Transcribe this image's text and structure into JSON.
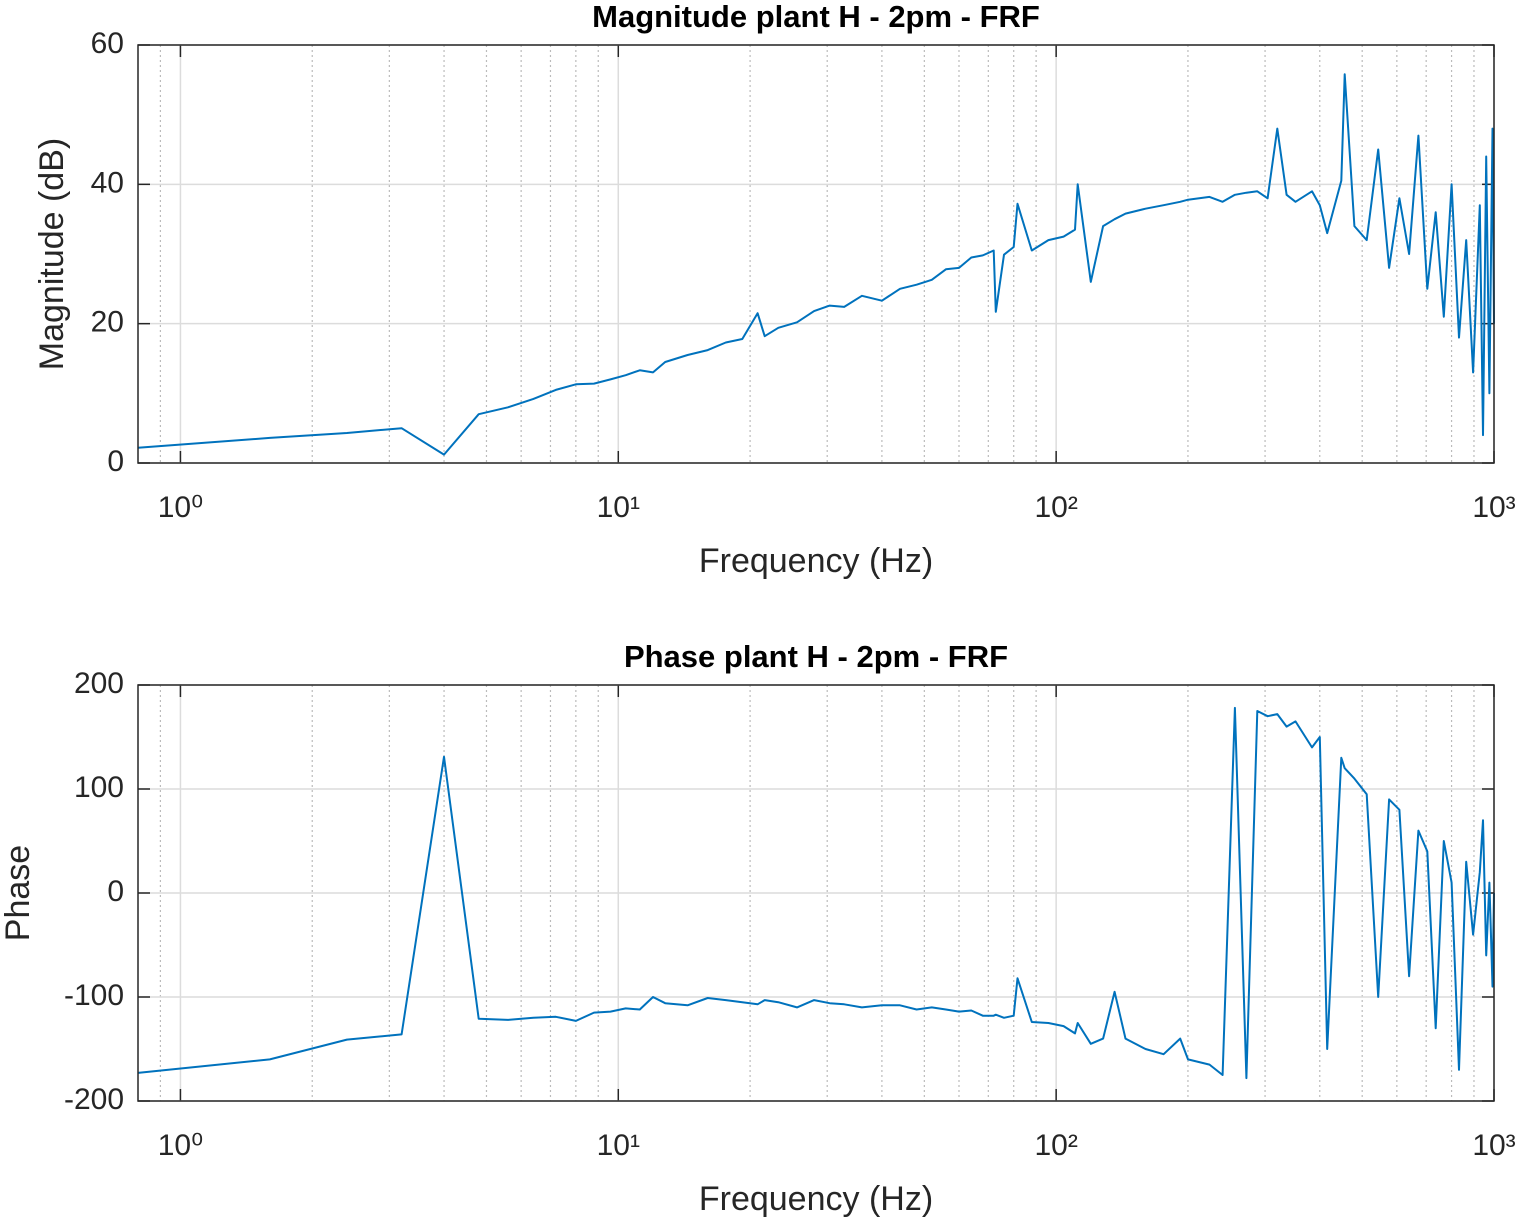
{
  "chart_data": [
    {
      "type": "line",
      "title": "Magnitude plant H - 2pm - FRF",
      "x_label": "Frequency (Hz)",
      "y_label": "Magnitude (dB)",
      "x_scale": "log",
      "grid": true,
      "minor_grid": true,
      "xlim": [
        0.8,
        1000
      ],
      "xticks": [
        {
          "value": 1,
          "label": "10⁰"
        },
        {
          "value": 10,
          "label": "10¹"
        },
        {
          "value": 100,
          "label": "10²"
        },
        {
          "value": 1000,
          "label": "10³"
        }
      ],
      "ylim": [
        0,
        60
      ],
      "yticks": [
        0,
        20,
        40,
        60
      ],
      "color": "#0072bd",
      "x": [
        0.8,
        1.6,
        2.4,
        3.2,
        4.0,
        4.8,
        5.6,
        6.4,
        7.2,
        8.0,
        8.8,
        9.6,
        10.4,
        11.2,
        12.0,
        12.8,
        14.4,
        16,
        17.6,
        19.2,
        20.8,
        21.6,
        23.2,
        25.6,
        28,
        30.4,
        32.8,
        36,
        40,
        44,
        48,
        52,
        56,
        60,
        64,
        68,
        72,
        72.8,
        76,
        80,
        81.6,
        88,
        96,
        104,
        110.4,
        112,
        120,
        128,
        136,
        144,
        160,
        176,
        192,
        200,
        224,
        240,
        256,
        272,
        288,
        304,
        320,
        336,
        352,
        384,
        400,
        416,
        448,
        456,
        480,
        512,
        544,
        576,
        608,
        640,
        672,
        704,
        736,
        768,
        800,
        832,
        864,
        896,
        928,
        944,
        960,
        976,
        992,
        1000
      ],
      "values": [
        2.2,
        3.6,
        4.3,
        5.0,
        1.2,
        7.0,
        8.0,
        9.2,
        10.5,
        11.3,
        11.4,
        12.0,
        12.6,
        13.3,
        13.0,
        14.5,
        15.5,
        16.2,
        17.3,
        17.8,
        21.5,
        18.2,
        19.4,
        20.2,
        21.8,
        22.6,
        22.4,
        24.0,
        23.3,
        25.0,
        25.6,
        26.3,
        27.8,
        28.0,
        29.5,
        29.8,
        30.5,
        21.7,
        29.9,
        31.0,
        37.2,
        30.5,
        32.0,
        32.5,
        33.5,
        40.0,
        26.0,
        34.0,
        35.0,
        35.8,
        36.5,
        37.0,
        37.5,
        37.8,
        38.2,
        37.5,
        38.5,
        38.8,
        39.0,
        38.0,
        48.0,
        38.5,
        37.5,
        39.0,
        37.0,
        33.0,
        40.5,
        55.8,
        34.0,
        32.0,
        45.0,
        28.0,
        38.0,
        30.0,
        47.0,
        25.0,
        36.0,
        21.0,
        40.0,
        18.0,
        32.0,
        13.0,
        37.0,
        4.0,
        44.0,
        10.0,
        48.0,
        20.0
      ]
    },
    {
      "type": "line",
      "title": "Phase plant H - 2pm - FRF",
      "x_label": "Frequency (Hz)",
      "y_label": "Phase",
      "x_scale": "log",
      "grid": true,
      "minor_grid": true,
      "xlim": [
        0.8,
        1000
      ],
      "xticks": [
        {
          "value": 1,
          "label": "10⁰"
        },
        {
          "value": 10,
          "label": "10¹"
        },
        {
          "value": 100,
          "label": "10²"
        },
        {
          "value": 1000,
          "label": "10³"
        }
      ],
      "ylim": [
        -200,
        200
      ],
      "yticks": [
        -200,
        -100,
        0,
        100,
        200
      ],
      "color": "#0072bd",
      "x": [
        0.8,
        1.6,
        2.4,
        3.2,
        4.0,
        4.8,
        5.6,
        6.4,
        7.2,
        8.0,
        8.8,
        9.6,
        10.4,
        11.2,
        12.0,
        12.8,
        14.4,
        16,
        17.6,
        19.2,
        20.8,
        21.6,
        23.2,
        25.6,
        28,
        30.4,
        32.8,
        36,
        40,
        44,
        48,
        52,
        56,
        60,
        64,
        68,
        72,
        72.8,
        76,
        80,
        81.6,
        88,
        96,
        104,
        110.4,
        112,
        120,
        128,
        136,
        144,
        160,
        176,
        192,
        200,
        224,
        240,
        256,
        272,
        288,
        304,
        320,
        336,
        352,
        384,
        400,
        416,
        448,
        456,
        480,
        512,
        544,
        576,
        608,
        640,
        672,
        704,
        736,
        768,
        800,
        832,
        864,
        896,
        928,
        944,
        960,
        976,
        992,
        1000
      ],
      "values": [
        -173,
        -160,
        -141,
        -136,
        131,
        -121,
        -122,
        -120,
        -119,
        -123,
        -115,
        -114,
        -111,
        -112,
        -100,
        -106,
        -108,
        -101,
        -103,
        -105,
        -107,
        -103,
        -105,
        -110,
        -103,
        -106,
        -107,
        -110,
        -108,
        -108,
        -112,
        -110,
        -112,
        -114,
        -113,
        -118,
        -118,
        -117,
        -120,
        -118,
        -82,
        -124,
        -125,
        -128,
        -135,
        -125,
        -145,
        -140,
        -95,
        -140,
        -150,
        -155,
        -140,
        -160,
        -165,
        -175,
        178,
        -178,
        175,
        170,
        172,
        160,
        165,
        140,
        150,
        -150,
        130,
        120,
        110,
        95,
        -100,
        90,
        80,
        -80,
        60,
        40,
        -130,
        50,
        10,
        -170,
        30,
        -40,
        20,
        70,
        -60,
        10,
        -90,
        0
      ]
    }
  ]
}
